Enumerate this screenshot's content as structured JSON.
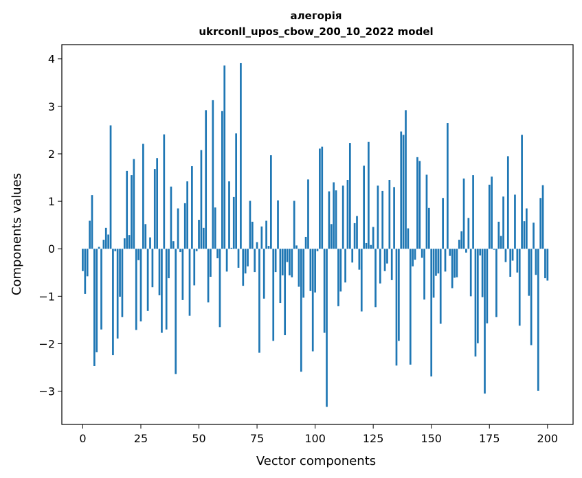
{
  "chart_data": {
    "type": "bar",
    "title": [
      "алегорія",
      "ukrconll_upos_cbow_200_10_2022 model"
    ],
    "xlabel": "Vector components",
    "ylabel": "Components values",
    "xlim": [
      -9,
      211
    ],
    "ylim": [
      -3.7,
      4.3
    ],
    "xticks": [
      0,
      25,
      50,
      75,
      100,
      125,
      150,
      175,
      200
    ],
    "yticks": [
      -3,
      -2,
      -1,
      0,
      1,
      2,
      3,
      4
    ],
    "ytick_labels": [
      "−3",
      "−2",
      "−1",
      "0",
      "1",
      "2",
      "3",
      "4"
    ],
    "bar_color": "#1f77b4",
    "grid": false,
    "values": [
      -0.47,
      -0.95,
      -0.58,
      0.59,
      1.13,
      -2.47,
      -2.18,
      0.04,
      -1.7,
      0.19,
      0.44,
      0.3,
      2.6,
      -2.24,
      -0.05,
      -1.89,
      -1.01,
      -1.44,
      0.22,
      1.64,
      0.29,
      1.55,
      1.89,
      -1.71,
      -0.24,
      -1.53,
      2.21,
      0.52,
      -1.31,
      0.24,
      -0.81,
      1.68,
      1.91,
      -0.98,
      -1.77,
      2.41,
      -1.7,
      -0.62,
      1.31,
      0.16,
      -2.64,
      0.85,
      -0.07,
      -1.08,
      0.96,
      1.42,
      -1.41,
      1.74,
      -0.77,
      -0.05,
      0.61,
      2.08,
      0.44,
      2.92,
      -1.13,
      -0.59,
      3.13,
      0.87,
      -0.2,
      -1.65,
      2.9,
      3.86,
      -0.48,
      1.42,
      0.02,
      1.09,
      2.43,
      -0.4,
      3.91,
      -0.78,
      -0.52,
      -0.37,
      1.01,
      0.57,
      -0.49,
      0.14,
      -2.19,
      0.47,
      -1.05,
      0.59,
      0.06,
      1.97,
      -1.94,
      -0.49,
      1.02,
      -1.14,
      -0.56,
      -1.82,
      -0.28,
      -0.56,
      -0.6,
      1.01,
      0.07,
      -0.8,
      -2.59,
      -1.03,
      0.25,
      1.46,
      -0.89,
      -2.16,
      -0.92,
      -0.05,
      2.11,
      2.15,
      -1.77,
      -3.33,
      1.21,
      0.52,
      1.4,
      1.23,
      -1.21,
      -0.9,
      1.33,
      -0.71,
      1.45,
      2.23,
      -0.29,
      0.54,
      0.69,
      -0.44,
      -1.32,
      1.75,
      0.12,
      2.25,
      0.08,
      0.46,
      -1.23,
      1.33,
      -0.73,
      1.22,
      -0.47,
      -0.31,
      1.45,
      -0.66,
      1.3,
      -2.46,
      -1.94,
      2.47,
      2.4,
      2.92,
      0.43,
      -2.44,
      -0.37,
      -0.23,
      1.93,
      1.85,
      -0.19,
      -1.07,
      1.56,
      0.86,
      -2.69,
      -1.03,
      -0.57,
      -0.52,
      -1.58,
      1.07,
      -0.48,
      2.65,
      -0.15,
      -0.83,
      -0.61,
      -0.6,
      0.19,
      0.37,
      1.48,
      -0.08,
      0.65,
      -1.0,
      1.55,
      -2.27,
      -1.99,
      -0.14,
      -1.02,
      -3.05,
      -1.57,
      1.35,
      1.52,
      -0.02,
      -1.44,
      0.57,
      0.27,
      1.1,
      -0.28,
      1.95,
      -0.59,
      -0.25,
      1.14,
      -0.5,
      -1.62,
      2.4,
      0.58,
      0.85,
      -0.99,
      -2.03,
      0.55,
      -0.55,
      -2.99,
      1.07,
      1.34,
      -0.62,
      -0.67
    ]
  }
}
